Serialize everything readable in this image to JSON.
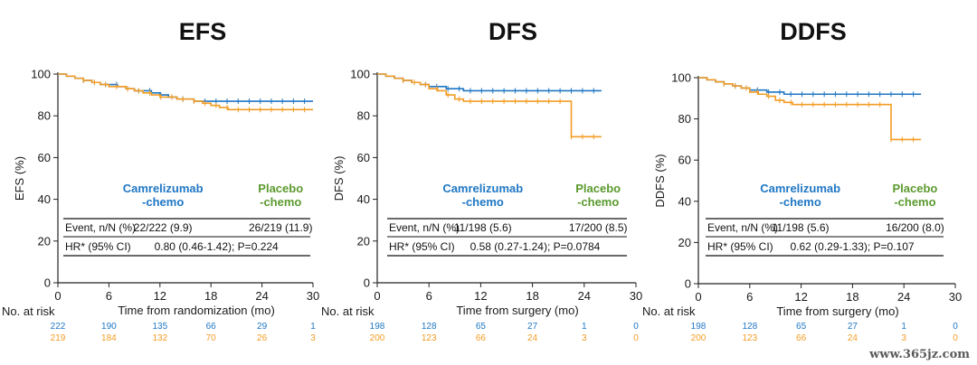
{
  "colors": {
    "camrelizumab": "#1f77c4",
    "placebo": "#f39c24",
    "placebo_label": "#5b9a2e",
    "axis": "#222222"
  },
  "watermark": "www.365jz.com",
  "chart_data": [
    {
      "type": "line",
      "title": "EFS",
      "ylabel": "EFS (%)",
      "xlabel": "Time from randomization (mo)",
      "xlim": [
        0,
        30
      ],
      "ylim": [
        0,
        100
      ],
      "xticks": [
        0,
        6,
        12,
        18,
        24,
        30
      ],
      "yticks": [
        0,
        20,
        40,
        60,
        80,
        100
      ],
      "grid": false,
      "step": true,
      "series": [
        {
          "name": "Camrelizumab -chemo",
          "label_lines": [
            "Camrelizumab",
            "-chemo"
          ],
          "x": [
            0,
            1,
            2,
            3,
            4,
            5,
            6,
            7,
            8,
            9,
            10,
            11,
            12,
            13,
            14,
            15,
            16,
            17,
            18,
            19,
            20,
            21,
            22,
            23,
            24,
            25,
            26,
            27,
            28,
            29,
            30
          ],
          "y": [
            100,
            99,
            98,
            97,
            96,
            95,
            95,
            94,
            93,
            92,
            92,
            91,
            90,
            89,
            88,
            88,
            87,
            87,
            87,
            87,
            87,
            87,
            87,
            87,
            87,
            87,
            87,
            87,
            87,
            87,
            87
          ]
        },
        {
          "name": "Placebo -chemo",
          "label_lines": [
            "Placebo",
            "-chemo"
          ],
          "x": [
            0,
            1,
            2,
            3,
            4,
            5,
            6,
            7,
            8,
            9,
            10,
            11,
            12,
            13,
            14,
            15,
            16,
            17,
            18,
            19,
            20,
            21,
            22,
            23,
            24,
            25,
            26,
            27,
            28,
            29,
            30
          ],
          "y": [
            100,
            99,
            98,
            97,
            96,
            95,
            94,
            94,
            93,
            92,
            91,
            90,
            89,
            89,
            88,
            88,
            87,
            86,
            85,
            84,
            83,
            83,
            83,
            83,
            83,
            83,
            83,
            83,
            83,
            83,
            83
          ]
        }
      ],
      "table": {
        "event_label": "Event, n/N (%)",
        "event_values": [
          "22/222 (9.9)",
          "26/219 (11.9)"
        ],
        "hr_label": "HR* (95% CI)",
        "hr_value": "0.80 (0.46-1.42); P=0.224"
      },
      "risk_table": {
        "label": "No. at risk",
        "times": [
          0,
          6,
          12,
          18,
          24,
          30
        ],
        "camrelizumab": [
          "222",
          "190",
          "135",
          "66",
          "29",
          "1"
        ],
        "placebo": [
          "219",
          "184",
          "132",
          "70",
          "26",
          "3"
        ]
      }
    },
    {
      "type": "line",
      "title": "DFS",
      "ylabel": "DFS (%)",
      "xlabel": "Time from surgery (mo)",
      "xlim": [
        0,
        30
      ],
      "ylim": [
        0,
        100
      ],
      "xticks": [
        0,
        6,
        12,
        18,
        24,
        30
      ],
      "yticks": [
        0,
        20,
        40,
        60,
        80,
        100
      ],
      "grid": false,
      "step": true,
      "series": [
        {
          "name": "Camrelizumab -chemo",
          "label_lines": [
            "Camrelizumab",
            "-chemo"
          ],
          "x": [
            0,
            1,
            2,
            3,
            4,
            5,
            6,
            7,
            8,
            9,
            10,
            11,
            12,
            14,
            16,
            18,
            20,
            22,
            24,
            26
          ],
          "y": [
            100,
            99,
            98,
            97,
            96,
            95,
            94,
            94,
            93,
            93,
            92,
            92,
            92,
            92,
            92,
            92,
            92,
            92,
            92,
            92
          ]
        },
        {
          "name": "Placebo -chemo",
          "label_lines": [
            "Placebo",
            "-chemo"
          ],
          "x": [
            0,
            1,
            2,
            3,
            4,
            5,
            6,
            7,
            8,
            9,
            10,
            11,
            12,
            14,
            16,
            18,
            20,
            22.5,
            24,
            26
          ],
          "y": [
            100,
            99,
            98,
            97,
            96,
            95,
            93,
            92,
            90,
            88,
            87,
            87,
            87,
            87,
            87,
            87,
            87,
            70,
            70,
            70
          ]
        }
      ],
      "table": {
        "event_label": "Event, n/N (%)",
        "event_values": [
          "11/198 (5.6)",
          "17/200 (8.5)"
        ],
        "hr_label": "HR* (95% CI)",
        "hr_value": "0.58 (0.27-1.24); P=0.0784"
      },
      "risk_table": {
        "label": "No. at risk",
        "times": [
          0,
          6,
          12,
          18,
          24,
          30
        ],
        "camrelizumab": [
          "198",
          "128",
          "65",
          "27",
          "1",
          "0"
        ],
        "placebo": [
          "200",
          "123",
          "66",
          "24",
          "3",
          "0"
        ]
      }
    },
    {
      "type": "line",
      "title": "DDFS",
      "ylabel": "DDFS (%)",
      "xlabel": "Time from surgery (mo)",
      "xlim": [
        0,
        30
      ],
      "ylim": [
        0,
        100
      ],
      "xticks": [
        0,
        6,
        12,
        18,
        24,
        30
      ],
      "yticks": [
        0,
        20,
        40,
        60,
        80,
        100
      ],
      "grid": false,
      "step": true,
      "series": [
        {
          "name": "Camrelizumab -chemo",
          "label_lines": [
            "Camrelizumab",
            "-chemo"
          ],
          "x": [
            0,
            1,
            2,
            3,
            4,
            5,
            6,
            7,
            8,
            9,
            10,
            11,
            12,
            14,
            16,
            18,
            20,
            22,
            24,
            26
          ],
          "y": [
            100,
            99,
            98,
            97,
            96,
            95,
            94,
            94,
            93,
            93,
            92,
            92,
            92,
            92,
            92,
            92,
            92,
            92,
            92,
            92
          ]
        },
        {
          "name": "Placebo -chemo",
          "label_lines": [
            "Placebo",
            "-chemo"
          ],
          "x": [
            0,
            1,
            2,
            3,
            4,
            5,
            6,
            7,
            8,
            9,
            10,
            11,
            12,
            14,
            16,
            18,
            20,
            22.5,
            24,
            26
          ],
          "y": [
            100,
            99,
            98,
            97,
            96,
            95,
            93,
            92,
            91,
            89,
            88,
            87,
            87,
            87,
            87,
            87,
            87,
            70,
            70,
            70
          ]
        }
      ],
      "table": {
        "event_label": "Event, n/N (%)",
        "event_values": [
          "11/198 (5.6)",
          "16/200 (8.0)"
        ],
        "hr_label": "HR* (95% CI)",
        "hr_value": "0.62 (0.29-1.33); P=0.107"
      },
      "risk_table": {
        "label": "No. at risk",
        "times": [
          0,
          6,
          12,
          18,
          24,
          30
        ],
        "camrelizumab": [
          "198",
          "128",
          "65",
          "27",
          "1",
          "0"
        ],
        "placebo": [
          "200",
          "123",
          "66",
          "24",
          "3",
          "0"
        ]
      }
    }
  ]
}
